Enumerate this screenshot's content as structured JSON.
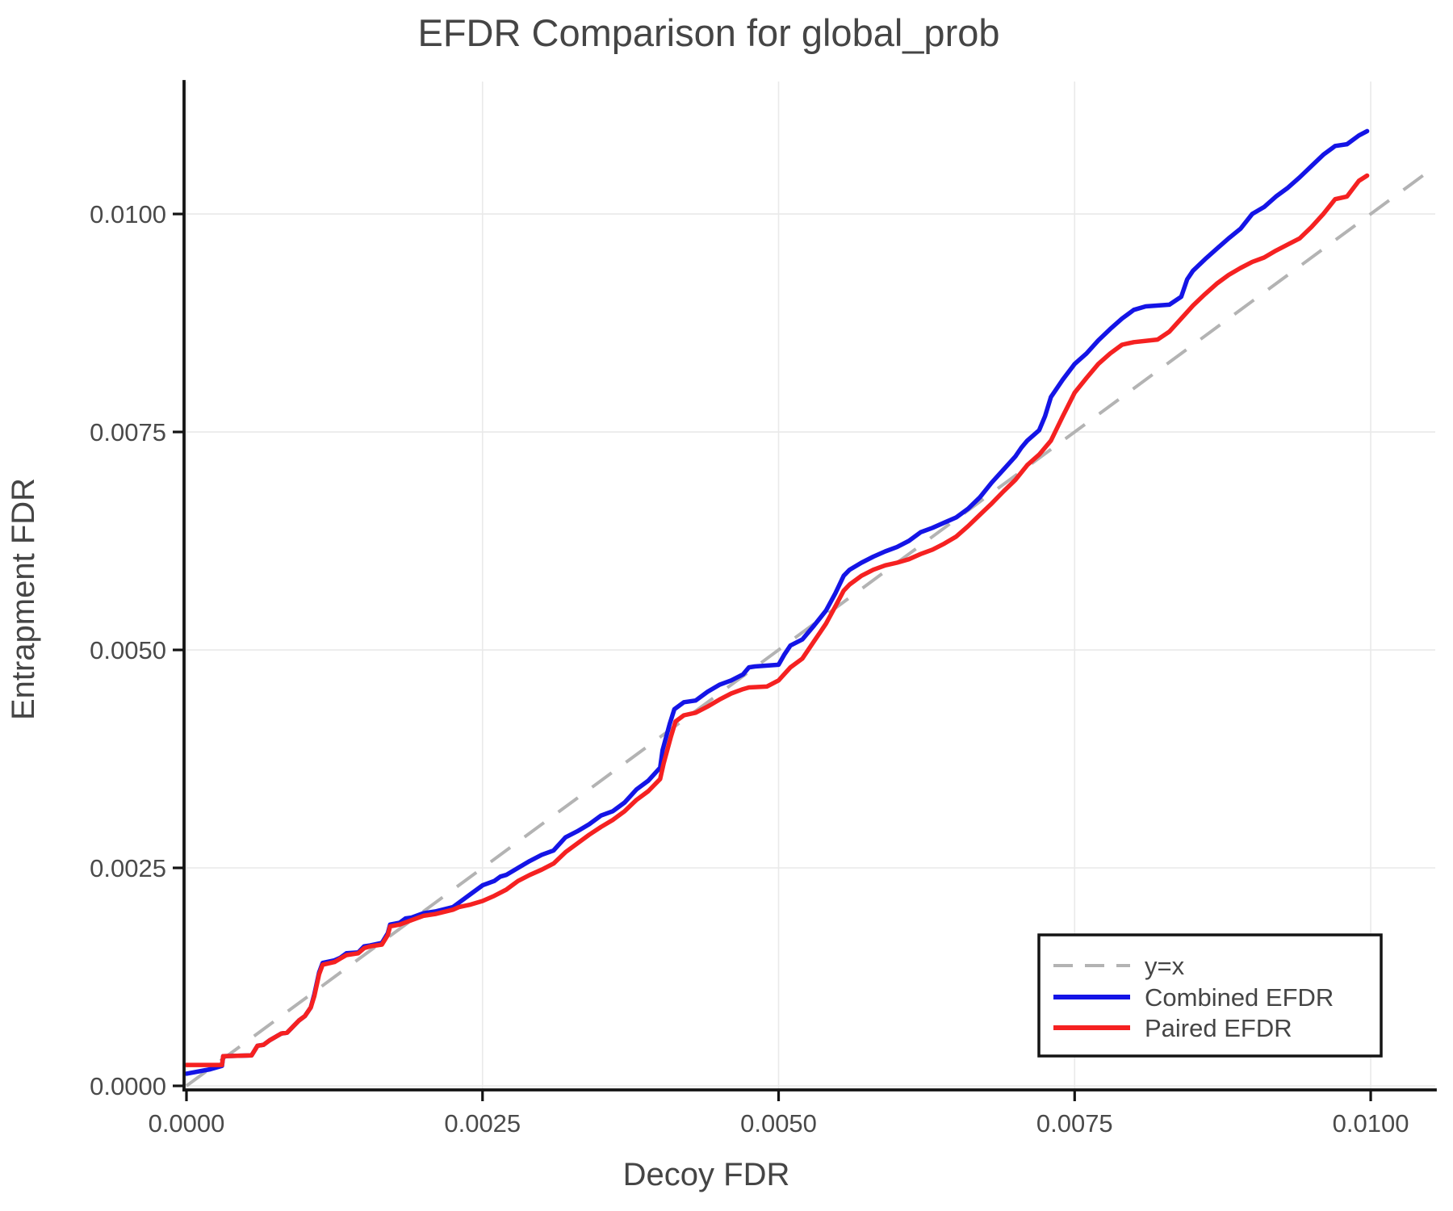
{
  "chart_data": {
    "type": "line",
    "title": "EFDR Comparison for global_prob",
    "xlabel": "Decoy FDR",
    "ylabel": "Entrapment FDR",
    "xlim": [
      0,
      0.010545
    ],
    "ylim": [
      0,
      0.011519
    ],
    "grid": true,
    "legend_position": "bottom-right",
    "x_ticks": {
      "values": [
        0.0,
        0.0025,
        0.005,
        0.0075,
        0.01
      ],
      "labels": [
        "0.0000",
        "0.0025",
        "0.0050",
        "0.0075",
        "0.0100"
      ]
    },
    "y_ticks": {
      "values": [
        0.0,
        0.0025,
        0.005,
        0.0075,
        0.01
      ],
      "labels": [
        "0.0000",
        "0.0025",
        "0.0050",
        "0.0075",
        "0.0100"
      ]
    },
    "diagonal": {
      "label": "y=x",
      "style": "dashed",
      "color": "#b3b3b3",
      "from": [
        0,
        0
      ],
      "to": [
        0.010545,
        0.010545
      ]
    },
    "series": [
      {
        "name": "Combined EFDR",
        "color": "#1414e6",
        "x": [
          0.0,
          0.0002,
          0.0003,
          0.00031,
          0.00055,
          0.0006,
          0.00065,
          0.0007,
          0.0008,
          0.00085,
          0.0009,
          0.00095,
          0.001,
          0.00105,
          0.00108,
          0.00112,
          0.00115,
          0.00125,
          0.0013,
          0.00135,
          0.00145,
          0.0015,
          0.00155,
          0.00165,
          0.0017,
          0.00172,
          0.0018,
          0.00185,
          0.0019,
          0.002,
          0.0021,
          0.00225,
          0.0023,
          0.0024,
          0.0025,
          0.0026,
          0.00265,
          0.0027,
          0.0028,
          0.0029,
          0.003,
          0.0031,
          0.0032,
          0.0033,
          0.0034,
          0.0035,
          0.0036,
          0.0037,
          0.0038,
          0.0039,
          0.004,
          0.00402,
          0.00408,
          0.00412,
          0.0042,
          0.0043,
          0.0044,
          0.0045,
          0.0046,
          0.0047,
          0.00475,
          0.0048,
          0.005,
          0.00505,
          0.0051,
          0.0052,
          0.0053,
          0.0054,
          0.00548,
          0.00555,
          0.0056,
          0.0057,
          0.0058,
          0.0059,
          0.006,
          0.0061,
          0.0062,
          0.0063,
          0.0064,
          0.0065,
          0.0066,
          0.0067,
          0.0068,
          0.0069,
          0.007,
          0.00705,
          0.0071,
          0.0072,
          0.00725,
          0.0073,
          0.0074,
          0.0075,
          0.0076,
          0.0077,
          0.0078,
          0.0079,
          0.008,
          0.0081,
          0.0083,
          0.0084,
          0.00845,
          0.0085,
          0.0086,
          0.0087,
          0.0088,
          0.0089,
          0.009,
          0.0091,
          0.0092,
          0.0093,
          0.0094,
          0.0095,
          0.0096,
          0.0097,
          0.0098,
          0.0099,
          0.00997
        ],
        "y": [
          0.00014,
          0.00019,
          0.00023,
          0.00034,
          0.00035,
          0.00046,
          0.00047,
          0.00052,
          0.0006,
          0.00061,
          0.00068,
          0.00075,
          0.0008,
          0.0009,
          0.00105,
          0.0013,
          0.00141,
          0.00144,
          0.00147,
          0.00152,
          0.00153,
          0.0016,
          0.00161,
          0.00164,
          0.00175,
          0.00185,
          0.00187,
          0.00192,
          0.00193,
          0.00198,
          0.002,
          0.00205,
          0.0021,
          0.0022,
          0.0023,
          0.00235,
          0.0024,
          0.00242,
          0.0025,
          0.00258,
          0.00265,
          0.0027,
          0.00285,
          0.00292,
          0.003,
          0.0031,
          0.00315,
          0.00325,
          0.0034,
          0.0035,
          0.00365,
          0.00385,
          0.00415,
          0.00432,
          0.0044,
          0.00442,
          0.00452,
          0.0046,
          0.00465,
          0.00472,
          0.0048,
          0.00481,
          0.00483,
          0.00495,
          0.00505,
          0.00512,
          0.00528,
          0.00545,
          0.00565,
          0.00585,
          0.00592,
          0.006,
          0.00607,
          0.00613,
          0.00618,
          0.00625,
          0.00635,
          0.0064,
          0.00646,
          0.00652,
          0.00662,
          0.00675,
          0.00692,
          0.00707,
          0.00722,
          0.00732,
          0.0074,
          0.00752,
          0.00768,
          0.0079,
          0.0081,
          0.00828,
          0.0084,
          0.00855,
          0.00868,
          0.0088,
          0.0089,
          0.00894,
          0.00896,
          0.00905,
          0.00925,
          0.00935,
          0.00948,
          0.0096,
          0.00972,
          0.00983,
          0.01,
          0.01008,
          0.0102,
          0.0103,
          0.01042,
          0.01055,
          0.01068,
          0.01078,
          0.0108,
          0.0109,
          0.01095
        ]
      },
      {
        "name": "Paired EFDR",
        "color": "#f52121",
        "x": [
          0.0,
          0.0003,
          0.00031,
          0.00055,
          0.0006,
          0.00065,
          0.0007,
          0.0008,
          0.00085,
          0.0009,
          0.00095,
          0.001,
          0.00105,
          0.00108,
          0.00112,
          0.00115,
          0.00125,
          0.0013,
          0.00135,
          0.00145,
          0.0015,
          0.00155,
          0.00165,
          0.0017,
          0.00172,
          0.0018,
          0.0019,
          0.002,
          0.0021,
          0.00225,
          0.0023,
          0.0024,
          0.0025,
          0.0026,
          0.0027,
          0.0028,
          0.0029,
          0.003,
          0.0031,
          0.0032,
          0.0033,
          0.0034,
          0.0035,
          0.0036,
          0.0037,
          0.0038,
          0.0039,
          0.004,
          0.00403,
          0.00409,
          0.00413,
          0.0042,
          0.0043,
          0.0044,
          0.0045,
          0.0046,
          0.0047,
          0.00475,
          0.0049,
          0.005,
          0.0051,
          0.0052,
          0.0053,
          0.0054,
          0.00548,
          0.00555,
          0.0056,
          0.0057,
          0.0058,
          0.0059,
          0.006,
          0.0061,
          0.0062,
          0.0063,
          0.0064,
          0.0065,
          0.0066,
          0.0067,
          0.0068,
          0.0069,
          0.007,
          0.0071,
          0.0072,
          0.0073,
          0.0074,
          0.0075,
          0.0076,
          0.0077,
          0.0078,
          0.0079,
          0.008,
          0.0082,
          0.0083,
          0.0084,
          0.0085,
          0.0086,
          0.0087,
          0.0088,
          0.0089,
          0.009,
          0.0091,
          0.0092,
          0.0093,
          0.0094,
          0.0095,
          0.0096,
          0.0097,
          0.0098,
          0.0099,
          0.00997
        ],
        "y": [
          0.00024,
          0.00024,
          0.00034,
          0.00035,
          0.00046,
          0.00047,
          0.00052,
          0.0006,
          0.00061,
          0.00068,
          0.00075,
          0.0008,
          0.0009,
          0.00103,
          0.00128,
          0.00139,
          0.00142,
          0.00146,
          0.0015,
          0.00152,
          0.00158,
          0.0016,
          0.00162,
          0.00173,
          0.00183,
          0.00185,
          0.0019,
          0.00195,
          0.00197,
          0.00202,
          0.00205,
          0.00208,
          0.00212,
          0.00218,
          0.00225,
          0.00235,
          0.00242,
          0.00248,
          0.00255,
          0.00268,
          0.00278,
          0.00288,
          0.00297,
          0.00305,
          0.00315,
          0.00328,
          0.00338,
          0.00352,
          0.0037,
          0.004,
          0.00418,
          0.00425,
          0.00428,
          0.00435,
          0.00443,
          0.0045,
          0.00455,
          0.00457,
          0.00458,
          0.00465,
          0.0048,
          0.0049,
          0.0051,
          0.0053,
          0.0055,
          0.00568,
          0.00575,
          0.00585,
          0.00592,
          0.00597,
          0.006,
          0.00604,
          0.0061,
          0.00615,
          0.00622,
          0.0063,
          0.00642,
          0.00655,
          0.00668,
          0.00682,
          0.00695,
          0.00712,
          0.00724,
          0.0074,
          0.00768,
          0.00795,
          0.00812,
          0.00828,
          0.0084,
          0.0085,
          0.00853,
          0.00856,
          0.00865,
          0.0088,
          0.00895,
          0.00908,
          0.0092,
          0.0093,
          0.00938,
          0.00945,
          0.0095,
          0.00958,
          0.00965,
          0.00972,
          0.00985,
          0.01,
          0.01017,
          0.0102,
          0.01038,
          0.01044
        ]
      }
    ]
  }
}
